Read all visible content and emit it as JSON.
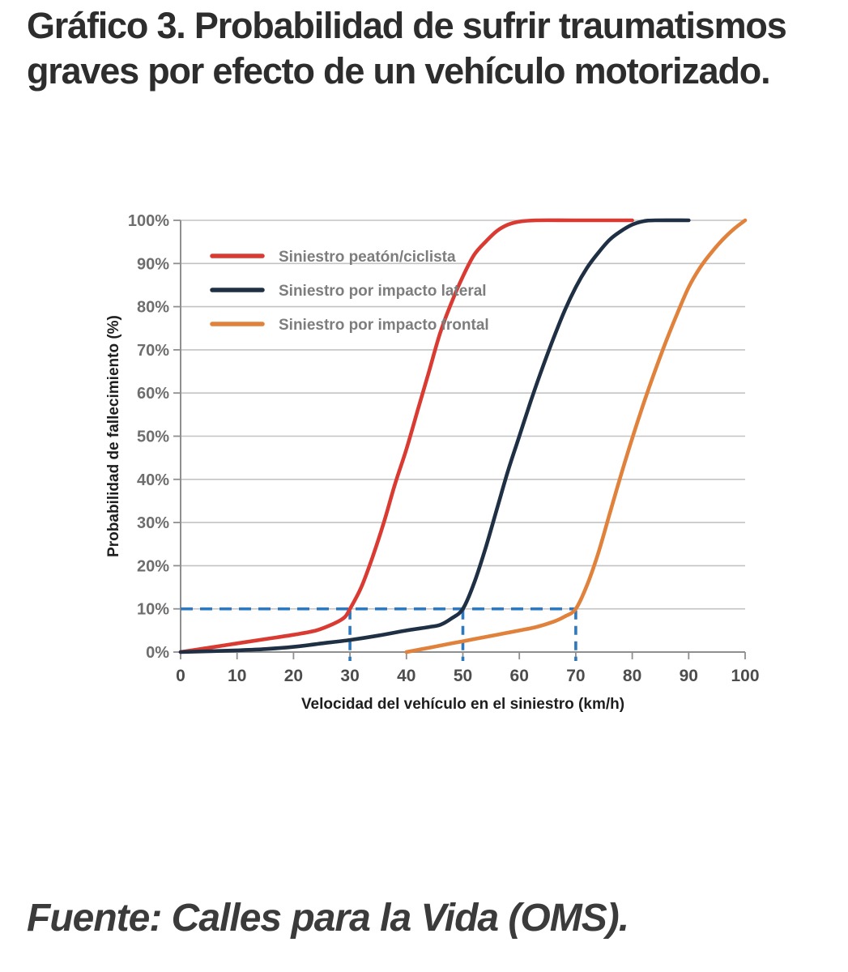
{
  "title": "Gráfico 3. Probabilidad de sufrir traumatismos graves por efecto de un vehículo motorizado.",
  "source": "Fuente: Calles para la Vida (OMS).",
  "chart_data": {
    "type": "line",
    "xlabel": "Velocidad del vehículo en el siniestro (km/h)",
    "ylabel": "Probabilidad de fallecimiento (%)",
    "xlim": [
      0,
      100
    ],
    "ylim": [
      0,
      100
    ],
    "x_ticks": [
      0,
      10,
      20,
      30,
      40,
      50,
      60,
      70,
      80,
      90,
      100
    ],
    "y_ticks": [
      0,
      10,
      20,
      30,
      40,
      50,
      60,
      70,
      80,
      90,
      100
    ],
    "y_tick_suffix": "%",
    "grid": "horizontal",
    "legend_position": "top-left-inside",
    "colors": {
      "grid": "#c3c3c3",
      "axis": "#8f8f8f",
      "reference": "#2e78be"
    },
    "series": [
      {
        "name": "Siniestro peatón/ciclista",
        "color": "#d93a32",
        "points": [
          [
            0,
            0
          ],
          [
            5,
            1
          ],
          [
            10,
            2
          ],
          [
            15,
            3
          ],
          [
            20,
            4
          ],
          [
            24,
            5
          ],
          [
            27,
            6.5
          ],
          [
            29,
            8
          ],
          [
            30,
            10
          ],
          [
            32,
            15
          ],
          [
            34,
            22
          ],
          [
            36,
            30
          ],
          [
            38,
            39
          ],
          [
            40,
            47
          ],
          [
            42,
            56
          ],
          [
            44,
            65
          ],
          [
            46,
            74
          ],
          [
            48,
            81
          ],
          [
            50,
            87
          ],
          [
            52,
            92
          ],
          [
            54,
            95
          ],
          [
            56,
            97.5
          ],
          [
            58,
            99
          ],
          [
            60,
            99.7
          ],
          [
            63,
            100
          ],
          [
            70,
            100
          ],
          [
            80,
            100
          ]
        ]
      },
      {
        "name": "Siniestro por impacto lateral",
        "color": "#1f3044",
        "points": [
          [
            0,
            0
          ],
          [
            10,
            0.4
          ],
          [
            15,
            0.7
          ],
          [
            20,
            1.2
          ],
          [
            25,
            2
          ],
          [
            30,
            2.8
          ],
          [
            35,
            3.8
          ],
          [
            40,
            5
          ],
          [
            44,
            5.8
          ],
          [
            46,
            6.3
          ],
          [
            48,
            7.8
          ],
          [
            50,
            10
          ],
          [
            52,
            16
          ],
          [
            54,
            24
          ],
          [
            56,
            33
          ],
          [
            58,
            42
          ],
          [
            60,
            50
          ],
          [
            62,
            58
          ],
          [
            64,
            65.5
          ],
          [
            66,
            72.5
          ],
          [
            68,
            79
          ],
          [
            70,
            84.5
          ],
          [
            72,
            89
          ],
          [
            74,
            92.5
          ],
          [
            76,
            95.5
          ],
          [
            78,
            97.5
          ],
          [
            80,
            99
          ],
          [
            82,
            99.8
          ],
          [
            84,
            100
          ],
          [
            90,
            100
          ]
        ]
      },
      {
        "name": "Siniestro por impacto frontal",
        "color": "#e0813c",
        "points": [
          [
            40,
            0
          ],
          [
            44,
            1
          ],
          [
            48,
            2
          ],
          [
            52,
            3
          ],
          [
            56,
            4
          ],
          [
            60,
            5
          ],
          [
            63,
            5.8
          ],
          [
            66,
            7
          ],
          [
            68,
            8.2
          ],
          [
            70,
            10
          ],
          [
            72,
            15.5
          ],
          [
            74,
            23
          ],
          [
            76,
            32
          ],
          [
            78,
            41
          ],
          [
            80,
            49.5
          ],
          [
            82,
            57.5
          ],
          [
            84,
            65
          ],
          [
            86,
            72
          ],
          [
            88,
            78.5
          ],
          [
            90,
            84.5
          ],
          [
            92,
            89
          ],
          [
            94,
            92.5
          ],
          [
            96,
            95.5
          ],
          [
            98,
            98
          ],
          [
            100,
            100
          ]
        ]
      }
    ],
    "reference_lines": {
      "color": "#2e78be",
      "horizontal_pct": 10,
      "horizontal_x_end": 70,
      "vertical_x": [
        30,
        50,
        70
      ]
    }
  }
}
